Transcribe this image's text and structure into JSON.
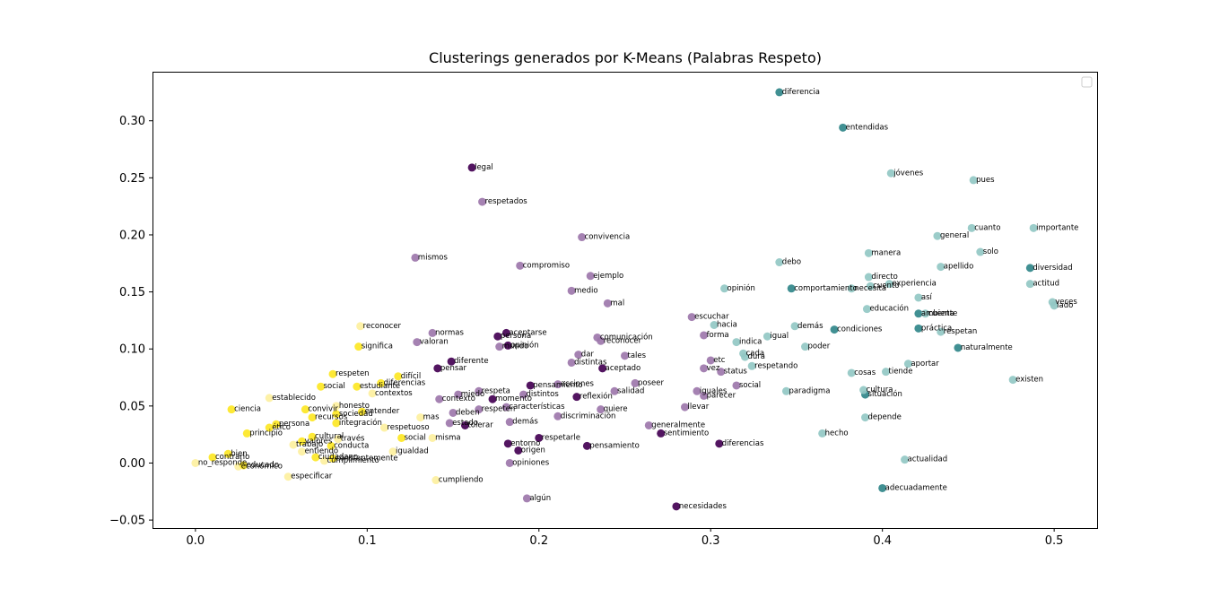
{
  "chart_data": {
    "type": "scatter",
    "title": "Clusterings generados por K-Means (Palabras Respeto)",
    "xlabel": "",
    "ylabel": "",
    "xlim": [
      -0.025,
      0.525
    ],
    "ylim": [
      -0.057,
      0.343
    ],
    "x_ticks": [
      0.0,
      0.1,
      0.2,
      0.3,
      0.4,
      0.5
    ],
    "x_tick_labels": [
      "0.0",
      "0.1",
      "0.2",
      "0.3",
      "0.4",
      "0.5"
    ],
    "y_ticks": [
      -0.05,
      0.0,
      0.05,
      0.1,
      0.15,
      0.2,
      0.25,
      0.3
    ],
    "y_tick_labels": [
      "−0.05",
      "0.00",
      "0.05",
      "0.10",
      "0.15",
      "0.20",
      "0.25",
      "0.30"
    ],
    "grid": false,
    "legend": "top-right",
    "cluster_colors": [
      "#440154",
      "#9d77ab",
      "#31878a",
      "#93c8c4",
      "#fde725",
      "#fdf0a0"
    ],
    "points": [
      {
        "label": "reconocer",
        "x": 0.096,
        "y": 0.12,
        "c": 5
      },
      {
        "label": "establecido",
        "x": 0.043,
        "y": 0.057,
        "c": 5
      },
      {
        "label": "contextos",
        "x": 0.103,
        "y": 0.061,
        "c": 5
      },
      {
        "label": "honesto",
        "x": 0.082,
        "y": 0.05,
        "c": 5
      },
      {
        "label": "mas",
        "x": 0.131,
        "y": 0.04,
        "c": 5
      },
      {
        "label": "respetuoso",
        "x": 0.11,
        "y": 0.031,
        "c": 5
      },
      {
        "label": "misma",
        "x": 0.138,
        "y": 0.022,
        "c": 5
      },
      {
        "label": "través",
        "x": 0.083,
        "y": 0.021,
        "c": 5
      },
      {
        "label": "trabajo",
        "x": 0.057,
        "y": 0.016,
        "c": 5
      },
      {
        "label": "cumpliendo",
        "x": 0.14,
        "y": -0.015,
        "c": 5
      },
      {
        "label": "especificar",
        "x": 0.054,
        "y": -0.012,
        "c": 5
      },
      {
        "label": "no_responde",
        "x": 0.0,
        "y": 0.0,
        "c": 5
      },
      {
        "label": "económico",
        "x": 0.025,
        "y": -0.003,
        "c": 5
      },
      {
        "label": "cumplimiento",
        "x": 0.075,
        "y": 0.002,
        "c": 5
      },
      {
        "label": "entiendo",
        "x": 0.062,
        "y": 0.01,
        "c": 5
      },
      {
        "label": "igualdad",
        "x": 0.115,
        "y": 0.01,
        "c": 5
      },
      {
        "label": "estudiante",
        "x": 0.094,
        "y": 0.067,
        "c": 4
      },
      {
        "label": "difícil",
        "x": 0.118,
        "y": 0.076,
        "c": 4
      },
      {
        "label": "respeten",
        "x": 0.08,
        "y": 0.078,
        "c": 4
      },
      {
        "label": "significa",
        "x": 0.095,
        "y": 0.102,
        "c": 4
      },
      {
        "label": "diferencias",
        "x": 0.108,
        "y": 0.07,
        "c": 4
      },
      {
        "label": "social",
        "x": 0.073,
        "y": 0.067,
        "c": 4
      },
      {
        "label": "ciencia",
        "x": 0.021,
        "y": 0.047,
        "c": 4
      },
      {
        "label": "convivir",
        "x": 0.064,
        "y": 0.047,
        "c": 4
      },
      {
        "label": "recursos",
        "x": 0.068,
        "y": 0.04,
        "c": 4
      },
      {
        "label": "entender",
        "x": 0.097,
        "y": 0.045,
        "c": 4
      },
      {
        "label": "sociedad",
        "x": 0.082,
        "y": 0.043,
        "c": 4
      },
      {
        "label": "ético",
        "x": 0.043,
        "y": 0.031,
        "c": 4
      },
      {
        "label": "integración",
        "x": 0.082,
        "y": 0.035,
        "c": 4
      },
      {
        "label": "cultural",
        "x": 0.068,
        "y": 0.023,
        "c": 4
      },
      {
        "label": "persona",
        "x": 0.047,
        "y": 0.034,
        "c": 4
      },
      {
        "label": "principio",
        "x": 0.03,
        "y": 0.026,
        "c": 4
      },
      {
        "label": "valores",
        "x": 0.062,
        "y": 0.019,
        "c": 4
      },
      {
        "label": "conducta",
        "x": 0.079,
        "y": 0.015,
        "c": 4
      },
      {
        "label": "social",
        "x": 0.12,
        "y": 0.022,
        "c": 4
      },
      {
        "label": "contrario",
        "x": 0.01,
        "y": 0.005,
        "c": 4
      },
      {
        "label": "bien",
        "x": 0.019,
        "y": 0.008,
        "c": 4
      },
      {
        "label": "ciudadano",
        "x": 0.07,
        "y": 0.005,
        "c": 4
      },
      {
        "label": "educado",
        "x": 0.028,
        "y": -0.002,
        "c": 4
      },
      {
        "label": "constantemente",
        "x": 0.08,
        "y": 0.004,
        "c": 4
      },
      {
        "label": "mismos",
        "x": 0.128,
        "y": 0.18,
        "c": 1
      },
      {
        "label": "respetados",
        "x": 0.167,
        "y": 0.229,
        "c": 1
      },
      {
        "label": "convivencia",
        "x": 0.225,
        "y": 0.198,
        "c": 1
      },
      {
        "label": "compromiso",
        "x": 0.189,
        "y": 0.173,
        "c": 1
      },
      {
        "label": "ejemplo",
        "x": 0.23,
        "y": 0.164,
        "c": 1
      },
      {
        "label": "medio",
        "x": 0.219,
        "y": 0.151,
        "c": 1
      },
      {
        "label": "mal",
        "x": 0.24,
        "y": 0.14,
        "c": 1
      },
      {
        "label": "normas",
        "x": 0.138,
        "y": 0.114,
        "c": 1
      },
      {
        "label": "valoran",
        "x": 0.129,
        "y": 0.106,
        "c": 1
      },
      {
        "label": "comunicación",
        "x": 0.234,
        "y": 0.11,
        "c": 1
      },
      {
        "label": "reconocer",
        "x": 0.236,
        "y": 0.107,
        "c": 1
      },
      {
        "label": "mundo",
        "x": 0.177,
        "y": 0.102,
        "c": 1
      },
      {
        "label": "dar",
        "x": 0.223,
        "y": 0.095,
        "c": 1
      },
      {
        "label": "tales",
        "x": 0.25,
        "y": 0.094,
        "c": 1
      },
      {
        "label": "distintas",
        "x": 0.219,
        "y": 0.088,
        "c": 1
      },
      {
        "label": "acciones",
        "x": 0.211,
        "y": 0.069,
        "c": 1
      },
      {
        "label": "poseer",
        "x": 0.256,
        "y": 0.07,
        "c": 1
      },
      {
        "label": "salidad",
        "x": 0.244,
        "y": 0.063,
        "c": 1
      },
      {
        "label": "distintos",
        "x": 0.191,
        "y": 0.06,
        "c": 1
      },
      {
        "label": "contexto",
        "x": 0.142,
        "y": 0.056,
        "c": 1
      },
      {
        "label": "miedo",
        "x": 0.153,
        "y": 0.06,
        "c": 1
      },
      {
        "label": "respeta",
        "x": 0.165,
        "y": 0.063,
        "c": 1
      },
      {
        "label": "deben",
        "x": 0.15,
        "y": 0.044,
        "c": 1
      },
      {
        "label": "respeten",
        "x": 0.165,
        "y": 0.047,
        "c": 1
      },
      {
        "label": "características",
        "x": 0.181,
        "y": 0.049,
        "c": 1
      },
      {
        "label": "quiere",
        "x": 0.236,
        "y": 0.047,
        "c": 1
      },
      {
        "label": "discriminación",
        "x": 0.211,
        "y": 0.041,
        "c": 1
      },
      {
        "label": "demás",
        "x": 0.183,
        "y": 0.036,
        "c": 1
      },
      {
        "label": "estado",
        "x": 0.148,
        "y": 0.035,
        "c": 1
      },
      {
        "label": "opiniones",
        "x": 0.183,
        "y": 0.0,
        "c": 1
      },
      {
        "label": "algún",
        "x": 0.193,
        "y": -0.031,
        "c": 1
      },
      {
        "label": "escuchar",
        "x": 0.289,
        "y": 0.128,
        "c": 1
      },
      {
        "label": "forma",
        "x": 0.296,
        "y": 0.112,
        "c": 1
      },
      {
        "label": "etc",
        "x": 0.3,
        "y": 0.09,
        "c": 1
      },
      {
        "label": "vez",
        "x": 0.296,
        "y": 0.083,
        "c": 1
      },
      {
        "label": "status",
        "x": 0.306,
        "y": 0.08,
        "c": 1
      },
      {
        "label": "social",
        "x": 0.315,
        "y": 0.068,
        "c": 1
      },
      {
        "label": "iguales",
        "x": 0.292,
        "y": 0.063,
        "c": 1
      },
      {
        "label": "parecer",
        "x": 0.296,
        "y": 0.059,
        "c": 1
      },
      {
        "label": "llevar",
        "x": 0.285,
        "y": 0.049,
        "c": 1
      },
      {
        "label": "generalmente",
        "x": 0.264,
        "y": 0.033,
        "c": 1
      },
      {
        "label": "legal",
        "x": 0.161,
        "y": 0.259,
        "c": 0
      },
      {
        "label": "persona",
        "x": 0.176,
        "y": 0.111,
        "c": 0
      },
      {
        "label": "aceptarse",
        "x": 0.181,
        "y": 0.114,
        "c": 0
      },
      {
        "label": "opinión",
        "x": 0.182,
        "y": 0.103,
        "c": 0
      },
      {
        "label": "diferente",
        "x": 0.149,
        "y": 0.089,
        "c": 0
      },
      {
        "label": "pensar",
        "x": 0.141,
        "y": 0.083,
        "c": 0
      },
      {
        "label": "aceptado",
        "x": 0.237,
        "y": 0.083,
        "c": 0
      },
      {
        "label": "pensamiento",
        "x": 0.195,
        "y": 0.068,
        "c": 0
      },
      {
        "label": "momento",
        "x": 0.173,
        "y": 0.056,
        "c": 0
      },
      {
        "label": "reflexión",
        "x": 0.222,
        "y": 0.058,
        "c": 0
      },
      {
        "label": "tolerar",
        "x": 0.157,
        "y": 0.033,
        "c": 0
      },
      {
        "label": "respetarle",
        "x": 0.2,
        "y": 0.022,
        "c": 0
      },
      {
        "label": "entorno",
        "x": 0.182,
        "y": 0.017,
        "c": 0
      },
      {
        "label": "origen",
        "x": 0.188,
        "y": 0.011,
        "c": 0
      },
      {
        "label": "pensamiento",
        "x": 0.228,
        "y": 0.015,
        "c": 0
      },
      {
        "label": "sentimiento",
        "x": 0.271,
        "y": 0.026,
        "c": 0
      },
      {
        "label": "diferencias",
        "x": 0.305,
        "y": 0.017,
        "c": 0
      },
      {
        "label": "necesidades",
        "x": 0.28,
        "y": -0.038,
        "c": 0
      },
      {
        "label": "diferencia",
        "x": 0.34,
        "y": 0.325,
        "c": 2
      },
      {
        "label": "entendidas",
        "x": 0.377,
        "y": 0.294,
        "c": 2
      },
      {
        "label": "comportamiento",
        "x": 0.347,
        "y": 0.153,
        "c": 2
      },
      {
        "label": "condiciones",
        "x": 0.372,
        "y": 0.117,
        "c": 2
      },
      {
        "label": "ambiente",
        "x": 0.421,
        "y": 0.131,
        "c": 2
      },
      {
        "label": "práctica",
        "x": 0.421,
        "y": 0.118,
        "c": 2
      },
      {
        "label": "naturalmente",
        "x": 0.444,
        "y": 0.101,
        "c": 2
      },
      {
        "label": "situación",
        "x": 0.39,
        "y": 0.06,
        "c": 2
      },
      {
        "label": "adecuadamente",
        "x": 0.4,
        "y": -0.022,
        "c": 2
      },
      {
        "label": "diversidad",
        "x": 0.486,
        "y": 0.171,
        "c": 2
      },
      {
        "label": "jóvenes",
        "x": 0.405,
        "y": 0.254,
        "c": 3
      },
      {
        "label": "pues",
        "x": 0.453,
        "y": 0.248,
        "c": 3
      },
      {
        "label": "cuanto",
        "x": 0.452,
        "y": 0.206,
        "c": 3
      },
      {
        "label": "importante",
        "x": 0.488,
        "y": 0.206,
        "c": 3
      },
      {
        "label": "general",
        "x": 0.432,
        "y": 0.199,
        "c": 3
      },
      {
        "label": "manera",
        "x": 0.392,
        "y": 0.184,
        "c": 3
      },
      {
        "label": "solo",
        "x": 0.457,
        "y": 0.185,
        "c": 3
      },
      {
        "label": "debo",
        "x": 0.34,
        "y": 0.176,
        "c": 3
      },
      {
        "label": "apellido",
        "x": 0.434,
        "y": 0.172,
        "c": 3
      },
      {
        "label": "directo",
        "x": 0.392,
        "y": 0.163,
        "c": 3
      },
      {
        "label": "opinión",
        "x": 0.308,
        "y": 0.153,
        "c": 3
      },
      {
        "label": "necesita",
        "x": 0.382,
        "y": 0.153,
        "c": 3
      },
      {
        "label": "experiencia",
        "x": 0.404,
        "y": 0.157,
        "c": 3
      },
      {
        "label": "actitud",
        "x": 0.486,
        "y": 0.157,
        "c": 3
      },
      {
        "label": "cuento",
        "x": 0.393,
        "y": 0.155,
        "c": 3
      },
      {
        "label": "así",
        "x": 0.421,
        "y": 0.145,
        "c": 3
      },
      {
        "label": "veces",
        "x": 0.499,
        "y": 0.141,
        "c": 3
      },
      {
        "label": "lado",
        "x": 0.5,
        "y": 0.138,
        "c": 3
      },
      {
        "label": "educación",
        "x": 0.391,
        "y": 0.135,
        "c": 3
      },
      {
        "label": "cuenta",
        "x": 0.425,
        "y": 0.131,
        "c": 3
      },
      {
        "label": "hacia",
        "x": 0.302,
        "y": 0.121,
        "c": 3
      },
      {
        "label": "demás",
        "x": 0.349,
        "y": 0.12,
        "c": 3
      },
      {
        "label": "respetan",
        "x": 0.434,
        "y": 0.115,
        "c": 3
      },
      {
        "label": "igual",
        "x": 0.333,
        "y": 0.111,
        "c": 3
      },
      {
        "label": "indica",
        "x": 0.315,
        "y": 0.106,
        "c": 3
      },
      {
        "label": "poder",
        "x": 0.355,
        "y": 0.102,
        "c": 3
      },
      {
        "label": "cada",
        "x": 0.319,
        "y": 0.096,
        "c": 3
      },
      {
        "label": "dura",
        "x": 0.32,
        "y": 0.093,
        "c": 3
      },
      {
        "label": "respetando",
        "x": 0.324,
        "y": 0.085,
        "c": 3
      },
      {
        "label": "aportar",
        "x": 0.415,
        "y": 0.087,
        "c": 3
      },
      {
        "label": "cosas",
        "x": 0.382,
        "y": 0.079,
        "c": 3
      },
      {
        "label": "tiende",
        "x": 0.402,
        "y": 0.08,
        "c": 3
      },
      {
        "label": "existen",
        "x": 0.476,
        "y": 0.073,
        "c": 3
      },
      {
        "label": "paradigma",
        "x": 0.344,
        "y": 0.063,
        "c": 3
      },
      {
        "label": "cultura",
        "x": 0.389,
        "y": 0.064,
        "c": 3
      },
      {
        "label": "depende",
        "x": 0.39,
        "y": 0.04,
        "c": 3
      },
      {
        "label": "hecho",
        "x": 0.365,
        "y": 0.026,
        "c": 3
      },
      {
        "label": "actualidad",
        "x": 0.413,
        "y": 0.003,
        "c": 3
      }
    ]
  }
}
